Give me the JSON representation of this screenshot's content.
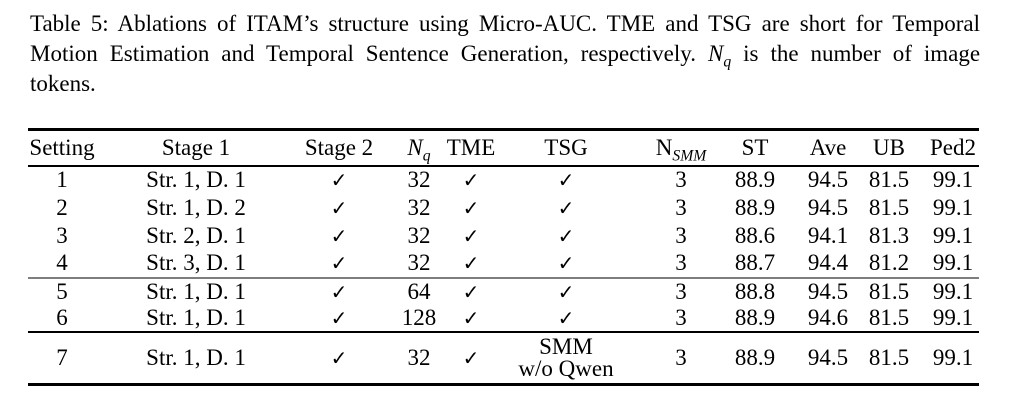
{
  "caption": {
    "line1": "Table 5: Ablations of ITAM’s structure using Micro-AUC. TME and TSG are short for Temporal",
    "line2_pre": "Motion Estimation and Temporal Sentence Generation, respectively.",
    "math_n": "N",
    "math_sub": "q",
    "line2_post": "is the number of image",
    "line3": "tokens."
  },
  "table": {
    "check_glyph": "✓",
    "columns": [
      {
        "key": "setting",
        "label": "Setting"
      },
      {
        "key": "stage1",
        "label": "Stage 1"
      },
      {
        "key": "stage2",
        "label": "Stage 2"
      },
      {
        "key": "nq",
        "label": "N",
        "sub": "q",
        "italic": true
      },
      {
        "key": "tme",
        "label": "TME"
      },
      {
        "key": "tsg",
        "label": "TSG"
      },
      {
        "key": "nsmm",
        "label": "N",
        "sub": "SMM"
      },
      {
        "key": "st",
        "label": "ST"
      },
      {
        "key": "ave",
        "label": "Ave"
      },
      {
        "key": "ub",
        "label": "UB"
      },
      {
        "key": "ped2",
        "label": "Ped2"
      }
    ],
    "groups": [
      {
        "rows": [
          {
            "setting": "1",
            "stage1": "Str. 1, D. 1",
            "stage2": "check",
            "nq": "32",
            "tme": "check",
            "tsg": "check",
            "nsmm": "3",
            "st": "88.9",
            "ave": "94.5",
            "ub": "81.5",
            "ped2": "99.1"
          },
          {
            "setting": "2",
            "stage1": "Str. 1, D. 2",
            "stage2": "check",
            "nq": "32",
            "tme": "check",
            "tsg": "check",
            "nsmm": "3",
            "st": "88.9",
            "ave": "94.5",
            "ub": "81.5",
            "ped2": "99.1"
          },
          {
            "setting": "3",
            "stage1": "Str. 2, D. 1",
            "stage2": "check",
            "nq": "32",
            "tme": "check",
            "tsg": "check",
            "nsmm": "3",
            "st": "88.6",
            "ave": "94.1",
            "ub": "81.3",
            "ped2": "99.1"
          },
          {
            "setting": "4",
            "stage1": "Str. 3, D. 1",
            "stage2": "check",
            "nq": "32",
            "tme": "check",
            "tsg": "check",
            "nsmm": "3",
            "st": "88.7",
            "ave": "94.4",
            "ub": "81.2",
            "ped2": "99.1"
          }
        ]
      },
      {
        "rows": [
          {
            "setting": "5",
            "stage1": "Str. 1, D. 1",
            "stage2": "check",
            "nq": "64",
            "tme": "check",
            "tsg": "check",
            "nsmm": "3",
            "st": "88.8",
            "ave": "94.5",
            "ub": "81.5",
            "ped2": "99.1"
          },
          {
            "setting": "6",
            "stage1": "Str. 1, D. 1",
            "stage2": "check",
            "nq": "128",
            "tme": "check",
            "tsg": "check",
            "nsmm": "3",
            "st": "88.9",
            "ave": "94.6",
            "ub": "81.5",
            "ped2": "99.1"
          }
        ]
      },
      {
        "rows": [
          {
            "setting": "7",
            "stage1": "Str. 1, D. 1",
            "stage2": "check",
            "nq": "32",
            "tme": "check",
            "tsg": [
              "SMM",
              "w/o Qwen"
            ],
            "nsmm": "3",
            "st": "88.9",
            "ave": "94.5",
            "ub": "81.5",
            "ped2": "99.1"
          }
        ]
      }
    ]
  }
}
